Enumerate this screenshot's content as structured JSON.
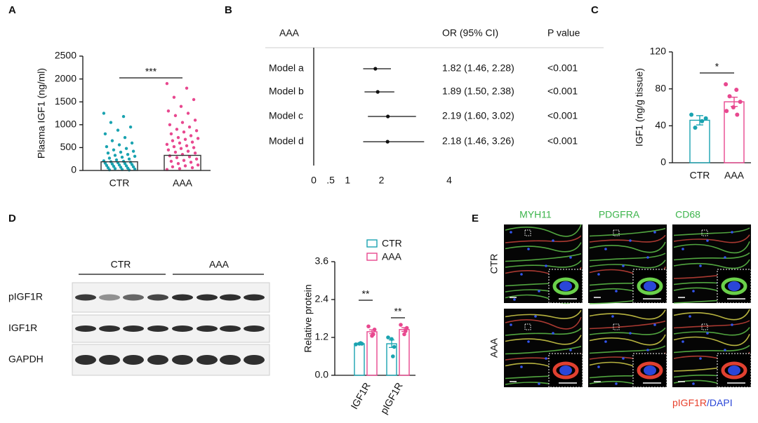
{
  "panel_labels": [
    "A",
    "B",
    "C",
    "D",
    "E"
  ],
  "chart_data": [
    {
      "type": "bar-scatter",
      "ylabel": "Plasma IGF1 (ng/ml)",
      "categories": [
        "CTR",
        "AAA"
      ],
      "values": [
        190,
        330
      ],
      "colors": [
        "#1aa3b0",
        "#e8488f"
      ],
      "points": [
        [
          1250,
          1180,
          1050,
          950,
          880,
          800,
          720,
          650,
          600,
          560,
          520,
          480,
          450,
          420,
          400,
          380,
          350,
          330,
          310,
          290,
          270,
          250,
          230,
          210,
          200,
          190,
          180,
          170,
          160,
          150,
          140,
          130,
          120,
          110,
          100,
          90,
          80,
          70,
          60,
          50,
          40,
          30,
          20,
          15,
          10
        ],
        [
          1900,
          1800,
          1600,
          1550,
          1400,
          1300,
          1250,
          1200,
          1100,
          1050,
          1000,
          950,
          900,
          870,
          840,
          800,
          760,
          720,
          700,
          680,
          650,
          620,
          600,
          570,
          540,
          520,
          500,
          480,
          450,
          420,
          400,
          380,
          350,
          320,
          300,
          280,
          250,
          220,
          200,
          180,
          150,
          120,
          100,
          80,
          60,
          40,
          20
        ]
      ],
      "ylim": [
        0,
        2500
      ],
      "yticks": [
        0,
        500,
        1000,
        1500,
        2000,
        2500
      ],
      "significance": "***"
    },
    {
      "type": "forest",
      "header": [
        "AAA",
        "OR (95% CI)",
        "P value"
      ],
      "categories": [
        "Model a",
        "Model b",
        "Model c",
        "Model d"
      ],
      "values": [
        1.82,
        1.89,
        2.19,
        2.18
      ],
      "lower": [
        1.46,
        1.5,
        1.6,
        1.46
      ],
      "upper": [
        2.28,
        2.38,
        3.02,
        3.26
      ],
      "value_labels": [
        "1.82 (1.46, 2.28)",
        "1.89 (1.50, 2.38)",
        "2.19 (1.60, 3.02)",
        "2.18 (1.46, 3.26)"
      ],
      "p_labels": [
        "<0.001",
        "<0.001",
        "<0.001",
        "<0.001"
      ],
      "xlim": [
        0,
        4
      ],
      "xticks": [
        0,
        {
          "value": 0.5,
          "label": ".5"
        },
        1,
        2,
        4
      ]
    },
    {
      "type": "bar-scatter",
      "ylabel": "IGF1 (ng/g tissue)",
      "categories": [
        "CTR",
        "AAA"
      ],
      "values": [
        46,
        66
      ],
      "errors": [
        5,
        5
      ],
      "colors": [
        "#1aa3b0",
        "#e8488f"
      ],
      "points": [
        [
          52,
          45,
          38,
          48
        ],
        [
          85,
          79,
          72,
          66,
          60,
          56,
          52
        ]
      ],
      "ylim": [
        0,
        120
      ],
      "yticks": [
        0,
        40,
        80,
        120
      ],
      "significance": "*"
    },
    {
      "type": "grouped-bar",
      "ylabel": "Relative protein",
      "categories": [
        "IGF1R",
        "pIGF1R"
      ],
      "series": [
        {
          "name": "CTR",
          "color": "#1aa3b0",
          "values": [
            1.0,
            1.0
          ],
          "errors": [
            0.02,
            0.12
          ],
          "points": [
            [
              0.98,
              1.0,
              1.02,
              1.0
            ],
            [
              1.2,
              0.9,
              0.6,
              1.15
            ]
          ]
        },
        {
          "name": "AAA",
          "color": "#e8488f",
          "values": [
            1.38,
            1.45
          ],
          "errors": [
            0.06,
            0.06
          ],
          "points": [
            [
              1.55,
              1.45,
              1.3,
              1.25
            ],
            [
              1.6,
              1.5,
              1.4,
              1.3
            ]
          ]
        }
      ],
      "significance": [
        "**",
        "**"
      ],
      "ylim": [
        0,
        3.6
      ],
      "yticks": [
        {
          "value": 0,
          "label": "0.0"
        },
        1.2,
        2.4,
        3.6
      ]
    }
  ],
  "blot": {
    "groups": [
      "CTR",
      "AAA"
    ],
    "rows": [
      "pIGF1R",
      "IGF1R",
      "GAPDH"
    ]
  },
  "images": {
    "columns": [
      "MYH11",
      "PDGFRA",
      "CD68"
    ],
    "rows": [
      "CTR",
      "AAA"
    ],
    "stain_labels": [
      "pIGF1R",
      "/DAPI"
    ]
  }
}
